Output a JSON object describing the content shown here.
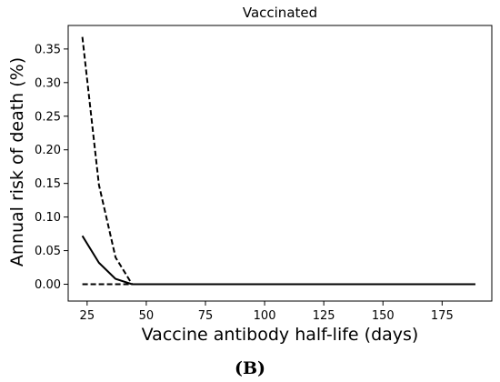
{
  "panel_label": "(B)",
  "chart_data": {
    "type": "line",
    "title": "Vaccinated",
    "xlabel": "Vaccine antibody half-life (days)",
    "ylabel": "Annual risk of death (%)",
    "xlim": [
      17,
      196
    ],
    "ylim": [
      -0.025,
      0.385
    ],
    "xticks": [
      25,
      50,
      75,
      100,
      125,
      150,
      175
    ],
    "yticks": [
      0.0,
      0.05,
      0.1,
      0.15,
      0.2,
      0.25,
      0.3,
      0.35
    ],
    "ytick_labels": [
      "0.00",
      "0.05",
      "0.10",
      "0.15",
      "0.20",
      "0.25",
      "0.30",
      "0.35"
    ],
    "grid": false,
    "series": [
      {
        "style": "dashed",
        "color": "#000000",
        "x": [
          23,
          30,
          37,
          44,
          51,
          58,
          70,
          90,
          110,
          130,
          150,
          170,
          189
        ],
        "y": [
          0.368,
          0.148,
          0.04,
          0.0,
          0.0,
          0.0,
          0.0,
          0.0,
          0.0,
          0.0,
          0.0,
          0.0,
          0.0
        ]
      },
      {
        "style": "solid",
        "color": "#000000",
        "x": [
          23,
          30,
          37,
          44,
          51,
          58,
          70,
          90,
          110,
          130,
          150,
          170,
          189
        ],
        "y": [
          0.072,
          0.032,
          0.008,
          0.0,
          0.0,
          0.0,
          0.0,
          0.0,
          0.0,
          0.0,
          0.0,
          0.0,
          0.0
        ]
      },
      {
        "style": "dashed",
        "color": "#000000",
        "x": [
          23,
          30,
          37,
          44,
          51,
          58,
          70,
          90,
          110,
          130,
          150,
          170,
          189
        ],
        "y": [
          0.0,
          0.0,
          0.0,
          0.0,
          0.0,
          0.0,
          0.0,
          0.0,
          0.0,
          0.0,
          0.0,
          0.0,
          0.0
        ]
      }
    ]
  }
}
